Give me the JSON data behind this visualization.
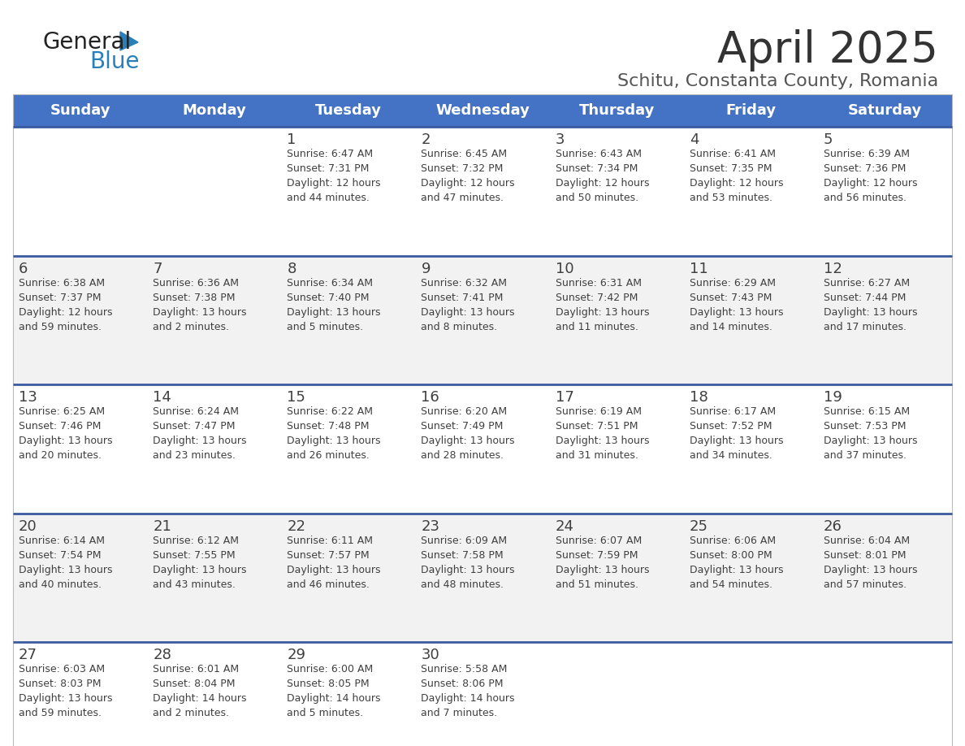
{
  "title": "April 2025",
  "subtitle": "Schitu, Constanta County, Romania",
  "header_bg": "#4472C4",
  "header_text_color": "#FFFFFF",
  "days_of_week": [
    "Sunday",
    "Monday",
    "Tuesday",
    "Wednesday",
    "Thursday",
    "Friday",
    "Saturday"
  ],
  "row_bg_odd": "#FFFFFF",
  "row_bg_even": "#F2F2F2",
  "divider_color": "#3A5BA0",
  "text_color": "#404040",
  "calendar": [
    [
      {
        "day": "",
        "info": ""
      },
      {
        "day": "",
        "info": ""
      },
      {
        "day": "1",
        "info": "Sunrise: 6:47 AM\nSunset: 7:31 PM\nDaylight: 12 hours\nand 44 minutes."
      },
      {
        "day": "2",
        "info": "Sunrise: 6:45 AM\nSunset: 7:32 PM\nDaylight: 12 hours\nand 47 minutes."
      },
      {
        "day": "3",
        "info": "Sunrise: 6:43 AM\nSunset: 7:34 PM\nDaylight: 12 hours\nand 50 minutes."
      },
      {
        "day": "4",
        "info": "Sunrise: 6:41 AM\nSunset: 7:35 PM\nDaylight: 12 hours\nand 53 minutes."
      },
      {
        "day": "5",
        "info": "Sunrise: 6:39 AM\nSunset: 7:36 PM\nDaylight: 12 hours\nand 56 minutes."
      }
    ],
    [
      {
        "day": "6",
        "info": "Sunrise: 6:38 AM\nSunset: 7:37 PM\nDaylight: 12 hours\nand 59 minutes."
      },
      {
        "day": "7",
        "info": "Sunrise: 6:36 AM\nSunset: 7:38 PM\nDaylight: 13 hours\nand 2 minutes."
      },
      {
        "day": "8",
        "info": "Sunrise: 6:34 AM\nSunset: 7:40 PM\nDaylight: 13 hours\nand 5 minutes."
      },
      {
        "day": "9",
        "info": "Sunrise: 6:32 AM\nSunset: 7:41 PM\nDaylight: 13 hours\nand 8 minutes."
      },
      {
        "day": "10",
        "info": "Sunrise: 6:31 AM\nSunset: 7:42 PM\nDaylight: 13 hours\nand 11 minutes."
      },
      {
        "day": "11",
        "info": "Sunrise: 6:29 AM\nSunset: 7:43 PM\nDaylight: 13 hours\nand 14 minutes."
      },
      {
        "day": "12",
        "info": "Sunrise: 6:27 AM\nSunset: 7:44 PM\nDaylight: 13 hours\nand 17 minutes."
      }
    ],
    [
      {
        "day": "13",
        "info": "Sunrise: 6:25 AM\nSunset: 7:46 PM\nDaylight: 13 hours\nand 20 minutes."
      },
      {
        "day": "14",
        "info": "Sunrise: 6:24 AM\nSunset: 7:47 PM\nDaylight: 13 hours\nand 23 minutes."
      },
      {
        "day": "15",
        "info": "Sunrise: 6:22 AM\nSunset: 7:48 PM\nDaylight: 13 hours\nand 26 minutes."
      },
      {
        "day": "16",
        "info": "Sunrise: 6:20 AM\nSunset: 7:49 PM\nDaylight: 13 hours\nand 28 minutes."
      },
      {
        "day": "17",
        "info": "Sunrise: 6:19 AM\nSunset: 7:51 PM\nDaylight: 13 hours\nand 31 minutes."
      },
      {
        "day": "18",
        "info": "Sunrise: 6:17 AM\nSunset: 7:52 PM\nDaylight: 13 hours\nand 34 minutes."
      },
      {
        "day": "19",
        "info": "Sunrise: 6:15 AM\nSunset: 7:53 PM\nDaylight: 13 hours\nand 37 minutes."
      }
    ],
    [
      {
        "day": "20",
        "info": "Sunrise: 6:14 AM\nSunset: 7:54 PM\nDaylight: 13 hours\nand 40 minutes."
      },
      {
        "day": "21",
        "info": "Sunrise: 6:12 AM\nSunset: 7:55 PM\nDaylight: 13 hours\nand 43 minutes."
      },
      {
        "day": "22",
        "info": "Sunrise: 6:11 AM\nSunset: 7:57 PM\nDaylight: 13 hours\nand 46 minutes."
      },
      {
        "day": "23",
        "info": "Sunrise: 6:09 AM\nSunset: 7:58 PM\nDaylight: 13 hours\nand 48 minutes."
      },
      {
        "day": "24",
        "info": "Sunrise: 6:07 AM\nSunset: 7:59 PM\nDaylight: 13 hours\nand 51 minutes."
      },
      {
        "day": "25",
        "info": "Sunrise: 6:06 AM\nSunset: 8:00 PM\nDaylight: 13 hours\nand 54 minutes."
      },
      {
        "day": "26",
        "info": "Sunrise: 6:04 AM\nSunset: 8:01 PM\nDaylight: 13 hours\nand 57 minutes."
      }
    ],
    [
      {
        "day": "27",
        "info": "Sunrise: 6:03 AM\nSunset: 8:03 PM\nDaylight: 13 hours\nand 59 minutes."
      },
      {
        "day": "28",
        "info": "Sunrise: 6:01 AM\nSunset: 8:04 PM\nDaylight: 14 hours\nand 2 minutes."
      },
      {
        "day": "29",
        "info": "Sunrise: 6:00 AM\nSunset: 8:05 PM\nDaylight: 14 hours\nand 5 minutes."
      },
      {
        "day": "30",
        "info": "Sunrise: 5:58 AM\nSunset: 8:06 PM\nDaylight: 14 hours\nand 7 minutes."
      },
      {
        "day": "",
        "info": ""
      },
      {
        "day": "",
        "info": ""
      },
      {
        "day": "",
        "info": ""
      }
    ]
  ],
  "logo_color_general": "#222222",
  "logo_color_blue": "#2980B9",
  "logo_triangle_color": "#2980B9"
}
